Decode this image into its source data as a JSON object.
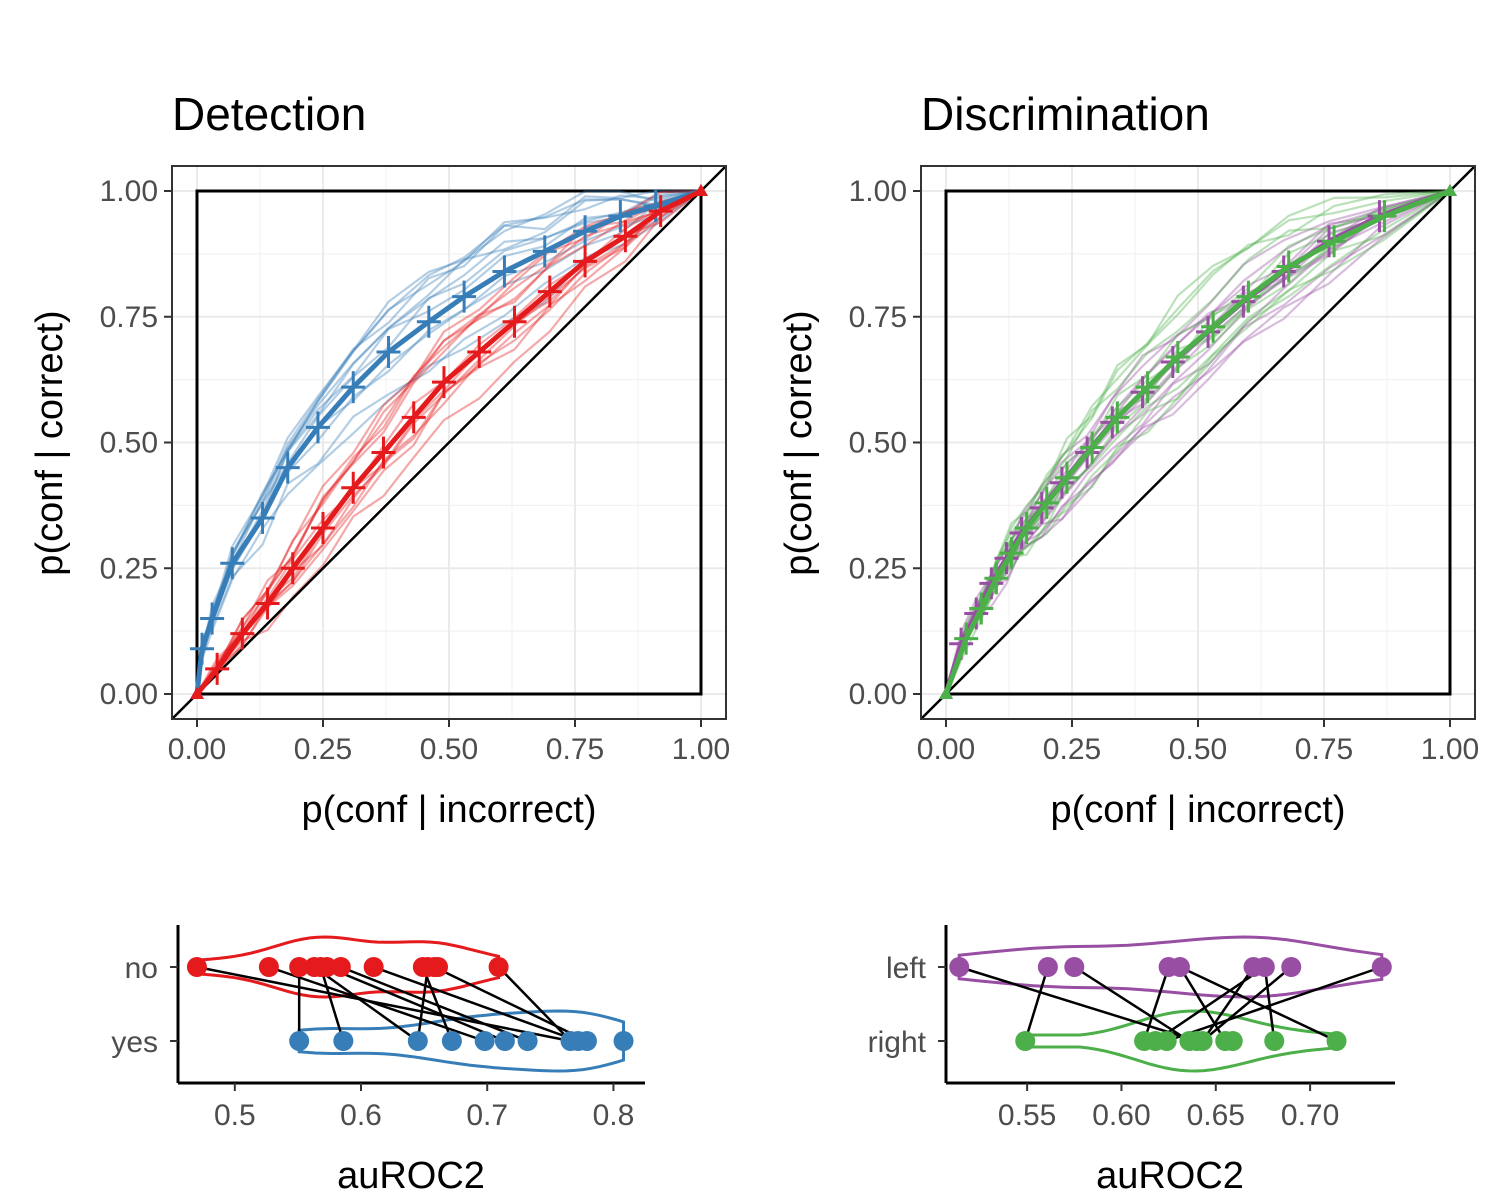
{
  "colors": {
    "detection_no": "#E41A1C",
    "detection_yes": "#377EB8",
    "discrimination_left": "#984EA3",
    "discrimination_right": "#4DAF4A"
  },
  "chart_data": [
    {
      "id": "detection-roc",
      "type": "line",
      "title": "Detection",
      "xlabel": "p(conf | incorrect)",
      "ylabel": "p(conf | correct)",
      "xlim": [
        0,
        1
      ],
      "ylim": [
        0,
        1
      ],
      "x_ticks": [
        "0.00",
        "0.25",
        "0.50",
        "0.75",
        "1.00"
      ],
      "y_ticks": [
        "0.00",
        "0.25",
        "0.50",
        "0.75",
        "1.00"
      ],
      "grid": true,
      "series": [
        {
          "group": "yes",
          "color": "#377EB8",
          "x": [
            0,
            0.01,
            0.03,
            0.07,
            0.13,
            0.18,
            0.24,
            0.31,
            0.38,
            0.46,
            0.53,
            0.61,
            0.69,
            0.77,
            0.84,
            0.91,
            1
          ],
          "y": [
            0,
            0.09,
            0.15,
            0.26,
            0.35,
            0.45,
            0.53,
            0.61,
            0.68,
            0.74,
            0.79,
            0.84,
            0.88,
            0.92,
            0.95,
            0.97,
            1
          ]
        },
        {
          "group": "no",
          "color": "#E41A1C",
          "x": [
            0,
            0.04,
            0.09,
            0.14,
            0.19,
            0.25,
            0.31,
            0.37,
            0.43,
            0.49,
            0.56,
            0.63,
            0.7,
            0.77,
            0.85,
            0.92,
            1
          ],
          "y": [
            0,
            0.05,
            0.12,
            0.18,
            0.25,
            0.33,
            0.41,
            0.48,
            0.55,
            0.62,
            0.68,
            0.74,
            0.8,
            0.86,
            0.91,
            0.96,
            1
          ]
        }
      ]
    },
    {
      "id": "discrimination-roc",
      "type": "line",
      "title": "Discrimination",
      "xlabel": "p(conf | incorrect)",
      "ylabel": "p(conf | correct)",
      "xlim": [
        0,
        1
      ],
      "ylim": [
        0,
        1
      ],
      "x_ticks": [
        "0.00",
        "0.25",
        "0.50",
        "0.75",
        "1.00"
      ],
      "y_ticks": [
        "0.00",
        "0.25",
        "0.50",
        "0.75",
        "1.00"
      ],
      "grid": true,
      "series": [
        {
          "group": "left",
          "color": "#984EA3",
          "x": [
            0,
            0.03,
            0.06,
            0.09,
            0.12,
            0.15,
            0.19,
            0.23,
            0.28,
            0.33,
            0.39,
            0.45,
            0.52,
            0.59,
            0.67,
            0.76,
            0.86,
            1
          ],
          "y": [
            0,
            0.1,
            0.16,
            0.22,
            0.27,
            0.32,
            0.37,
            0.42,
            0.48,
            0.54,
            0.6,
            0.66,
            0.72,
            0.78,
            0.84,
            0.9,
            0.95,
            1
          ]
        },
        {
          "group": "right",
          "color": "#4DAF4A",
          "x": [
            0,
            0.04,
            0.07,
            0.1,
            0.13,
            0.16,
            0.2,
            0.24,
            0.29,
            0.34,
            0.4,
            0.46,
            0.53,
            0.6,
            0.68,
            0.77,
            0.87,
            1
          ],
          "y": [
            0,
            0.11,
            0.17,
            0.23,
            0.28,
            0.33,
            0.38,
            0.43,
            0.49,
            0.55,
            0.61,
            0.67,
            0.73,
            0.79,
            0.85,
            0.9,
            0.95,
            1
          ]
        }
      ]
    },
    {
      "id": "detection-auroc",
      "type": "scatter",
      "xlabel": "auROC2",
      "x_ticks": [
        "0.5",
        "0.6",
        "0.7",
        "0.8"
      ],
      "xlim": [
        0.455,
        0.825
      ],
      "categories": [
        "no",
        "yes"
      ],
      "series": [
        {
          "name": "no",
          "color": "#E41A1C",
          "values": [
            0.47,
            0.527,
            0.551,
            0.563,
            0.568,
            0.573,
            0.584,
            0.61,
            0.649,
            0.653,
            0.658,
            0.661,
            0.709
          ]
        },
        {
          "name": "yes",
          "color": "#377EB8",
          "values": [
            0.551,
            0.586,
            0.645,
            0.672,
            0.698,
            0.714,
            0.732,
            0.766,
            0.772,
            0.779,
            0.808
          ]
        }
      ],
      "pairs": [
        [
          0.47,
          0.766
        ],
        [
          0.527,
          0.698
        ],
        [
          0.551,
          0.551
        ],
        [
          0.563,
          0.645
        ],
        [
          0.568,
          0.586
        ],
        [
          0.573,
          0.714
        ],
        [
          0.584,
          0.732
        ],
        [
          0.61,
          0.772
        ],
        [
          0.649,
          0.672
        ],
        [
          0.653,
          0.645
        ],
        [
          0.658,
          0.779
        ],
        [
          0.709,
          0.766
        ]
      ]
    },
    {
      "id": "discrimination-auroc",
      "type": "scatter",
      "xlabel": "auROC2",
      "x_ticks": [
        "0.55",
        "0.60",
        "0.65",
        "0.70"
      ],
      "xlim": [
        0.507,
        0.745
      ],
      "categories": [
        "left",
        "right"
      ],
      "series": [
        {
          "name": "left",
          "color": "#984EA3",
          "values": [
            0.514,
            0.561,
            0.575,
            0.625,
            0.631,
            0.67,
            0.676,
            0.69,
            0.738
          ]
        },
        {
          "name": "right",
          "color": "#4DAF4A",
          "values": [
            0.549,
            0.612,
            0.618,
            0.624,
            0.636,
            0.64,
            0.643,
            0.655,
            0.659,
            0.681,
            0.714
          ]
        }
      ],
      "pairs": [
        [
          0.514,
          0.64
        ],
        [
          0.561,
          0.549
        ],
        [
          0.575,
          0.636
        ],
        [
          0.625,
          0.612
        ],
        [
          0.631,
          0.714
        ],
        [
          0.67,
          0.643
        ],
        [
          0.676,
          0.618
        ],
        [
          0.69,
          0.643
        ],
        [
          0.738,
          0.624
        ],
        [
          0.631,
          0.655
        ],
        [
          0.676,
          0.681
        ]
      ]
    }
  ]
}
